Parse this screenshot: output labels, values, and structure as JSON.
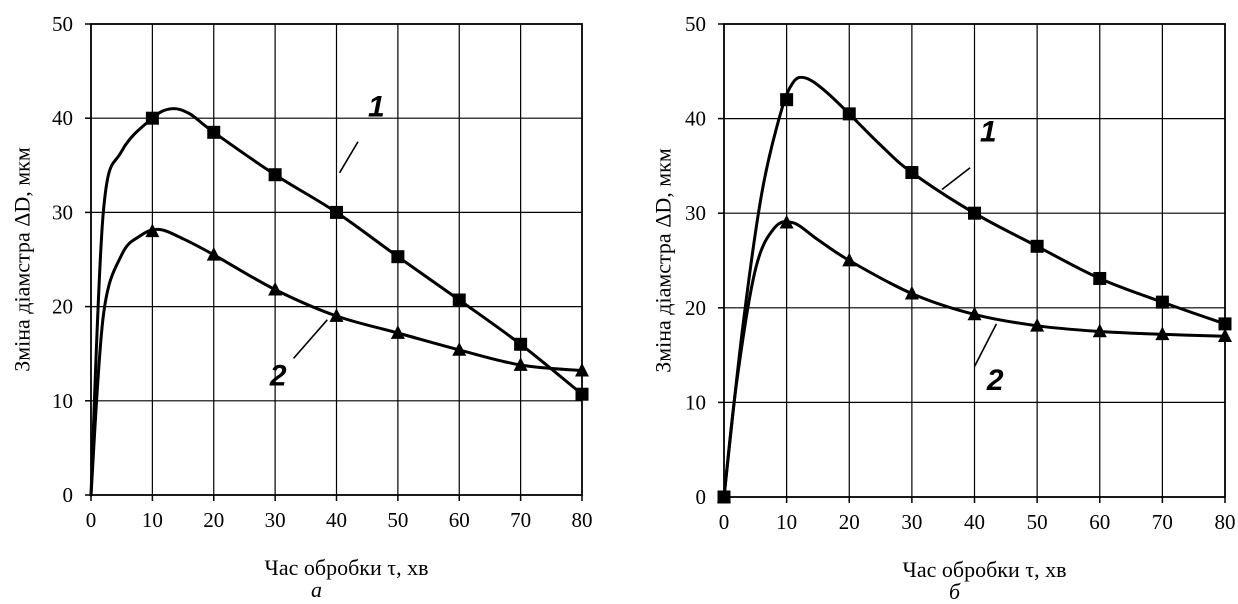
{
  "chart_data": [
    {
      "type": "line",
      "panel_label": "а",
      "xlabel": "Час обробки τ, хв",
      "ylabel": "Зміна діамстра ΔD, мкм",
      "xlim": [
        0,
        80
      ],
      "ylim": [
        0,
        50
      ],
      "xticks": [
        0,
        10,
        20,
        30,
        40,
        50,
        60,
        70,
        80
      ],
      "yticks": [
        0,
        10,
        20,
        30,
        40,
        50
      ],
      "grid": true,
      "series": [
        {
          "name": "1",
          "marker": "square",
          "x": [
            10,
            20,
            30,
            40,
            50,
            60,
            70,
            80
          ],
          "y": [
            40,
            38.5,
            34,
            30,
            25.3,
            20.7,
            16,
            10.7
          ],
          "curve": [
            [
              0,
              0
            ],
            [
              2,
              30
            ],
            [
              5,
              36.5
            ],
            [
              10,
              40
            ],
            [
              13,
              41
            ],
            [
              16,
              40.5
            ],
            [
              20,
              38.5
            ],
            [
              30,
              34
            ],
            [
              40,
              30
            ],
            [
              50,
              25.3
            ],
            [
              60,
              20.7
            ],
            [
              70,
              16
            ],
            [
              80,
              10.7
            ]
          ]
        },
        {
          "name": "2",
          "marker": "triangle",
          "x": [
            10,
            20,
            30,
            40,
            50,
            60,
            70,
            80
          ],
          "y": [
            28,
            25.5,
            21.8,
            19,
            17.2,
            15.4,
            13.8,
            13.2
          ],
          "curve": [
            [
              0,
              0
            ],
            [
              2,
              19
            ],
            [
              5,
              25.5
            ],
            [
              8,
              27.5
            ],
            [
              11,
              28.2
            ],
            [
              15,
              27.2
            ],
            [
              20,
              25.5
            ],
            [
              30,
              21.8
            ],
            [
              40,
              19
            ],
            [
              50,
              17.2
            ],
            [
              60,
              15.4
            ],
            [
              70,
              13.8
            ],
            [
              80,
              13.2
            ]
          ]
        }
      ]
    },
    {
      "type": "line",
      "panel_label": "б",
      "xlabel": "Час обробки τ, хв",
      "ylabel": "Зміна діамстра ΔD, мкм",
      "xlim": [
        0,
        80
      ],
      "ylim": [
        0,
        50
      ],
      "xticks": [
        0,
        10,
        20,
        30,
        40,
        50,
        60,
        70,
        80
      ],
      "yticks": [
        0,
        10,
        20,
        30,
        40,
        50
      ],
      "grid": true,
      "series": [
        {
          "name": "1",
          "marker": "square",
          "x": [
            0,
            10,
            20,
            30,
            40,
            50,
            60,
            70,
            80
          ],
          "y": [
            0,
            42,
            40.5,
            34.3,
            30,
            26.5,
            23.1,
            20.6,
            18.3
          ],
          "curve": [
            [
              0,
              0
            ],
            [
              3,
              18
            ],
            [
              6,
              32
            ],
            [
              9,
              40.5
            ],
            [
              11,
              43.8
            ],
            [
              13,
              44.3
            ],
            [
              16,
              43
            ],
            [
              20,
              40.5
            ],
            [
              25,
              37.2
            ],
            [
              30,
              34.3
            ],
            [
              40,
              30
            ],
            [
              50,
              26.5
            ],
            [
              60,
              23.1
            ],
            [
              70,
              20.6
            ],
            [
              80,
              18.3
            ]
          ]
        },
        {
          "name": "2",
          "marker": "triangle",
          "x": [
            0,
            10,
            20,
            30,
            40,
            50,
            60,
            70,
            80
          ],
          "y": [
            0,
            29,
            25,
            21.5,
            19.3,
            18.1,
            17.5,
            17.2,
            17
          ],
          "curve": [
            [
              0,
              0
            ],
            [
              2,
              12
            ],
            [
              5,
              24
            ],
            [
              8,
              28.4
            ],
            [
              11,
              29
            ],
            [
              15,
              27.2
            ],
            [
              20,
              25
            ],
            [
              30,
              21.5
            ],
            [
              40,
              19.3
            ],
            [
              50,
              18.1
            ],
            [
              60,
              17.5
            ],
            [
              70,
              17.2
            ],
            [
              80,
              17
            ]
          ]
        }
      ]
    }
  ]
}
